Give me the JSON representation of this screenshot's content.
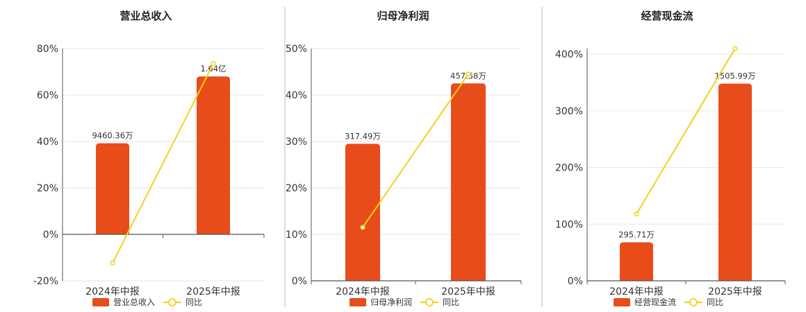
{
  "colors": {
    "bar": "#e84c1a",
    "line": "#f2d21b",
    "axis": "#555555",
    "grid": "#e6e6e6",
    "divider": "#bbbbbb"
  },
  "chart_data": [
    {
      "type": "bar",
      "title": "营业总收入",
      "categories": [
        "2024年中报",
        "2025年中报"
      ],
      "series": [
        {
          "name": "营业总收入",
          "type": "bar",
          "values": [
            39.2,
            68.0
          ],
          "labels": [
            "9460.36万",
            "1.64亿"
          ]
        },
        {
          "name": "同比",
          "type": "line",
          "values": [
            -12.3,
            73.5
          ]
        }
      ],
      "yticks": [
        "80%",
        "60%",
        "40%",
        "20%",
        "0%",
        "-20%"
      ],
      "ylim": [
        -20,
        80
      ],
      "grid": true,
      "legend": "bottom"
    },
    {
      "type": "bar",
      "title": "归母净利润",
      "categories": [
        "2024年中报",
        "2025年中报"
      ],
      "series": [
        {
          "name": "归母净利润",
          "type": "bar",
          "values": [
            29.5,
            42.5
          ],
          "labels": [
            "317.49万",
            "457.58万"
          ]
        },
        {
          "name": "同比",
          "type": "line",
          "values": [
            11.5,
            44.5
          ]
        }
      ],
      "yticks": [
        "50%",
        "40%",
        "30%",
        "20%",
        "10%",
        "0%"
      ],
      "ylim": [
        0,
        50
      ],
      "grid": true,
      "legend": "bottom"
    },
    {
      "type": "bar",
      "title": "经营现金流",
      "categories": [
        "2024年中报",
        "2025年中报"
      ],
      "series": [
        {
          "name": "经营现金流",
          "type": "bar",
          "values": [
            68,
            348
          ],
          "labels": [
            "295.71万",
            "1505.99万"
          ]
        },
        {
          "name": "同比",
          "type": "line",
          "values": [
            118,
            410
          ]
        }
      ],
      "yticks": [
        "400%",
        "300%",
        "200%",
        "100%",
        "0%"
      ],
      "ylim": [
        0,
        410
      ],
      "grid": true,
      "legend": "bottom"
    }
  ]
}
